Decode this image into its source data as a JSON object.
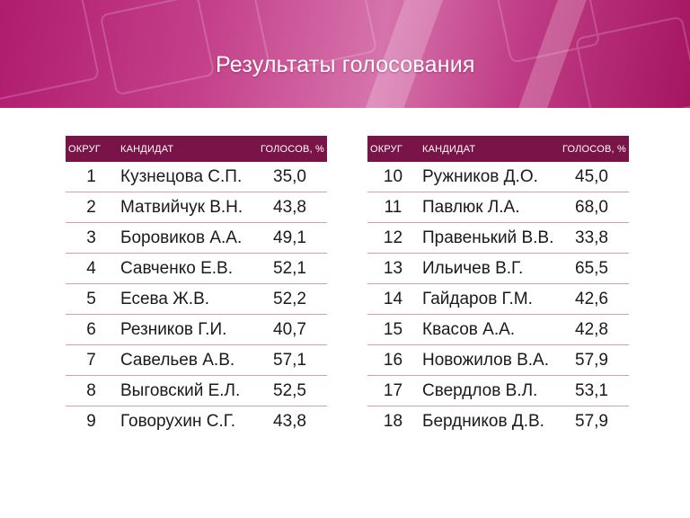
{
  "title": "Результаты голосования",
  "colors": {
    "banner": "#b01c6e",
    "header_row": "#7a1448",
    "row_divider": "#d49bbb"
  },
  "headers": {
    "district": "ОКРУГ",
    "candidate": "КАНДИДАТ",
    "votes": "ГОЛОСОВ, %"
  },
  "left_table": [
    {
      "district": "1",
      "candidate": "Кузнецова С.П.",
      "votes": "35,0"
    },
    {
      "district": "2",
      "candidate": "Матвийчук В.Н.",
      "votes": "43,8"
    },
    {
      "district": "3",
      "candidate": "Боровиков А.А.",
      "votes": "49,1"
    },
    {
      "district": "4",
      "candidate": "Савченко Е.В.",
      "votes": "52,1"
    },
    {
      "district": "5",
      "candidate": "Есева Ж.В.",
      "votes": "52,2"
    },
    {
      "district": "6",
      "candidate": "Резников Г.И.",
      "votes": "40,7"
    },
    {
      "district": "7",
      "candidate": "Савельев А.В.",
      "votes": "57,1"
    },
    {
      "district": "8",
      "candidate": "Выговский Е.Л.",
      "votes": "52,5"
    },
    {
      "district": "9",
      "candidate": "Говорухин С.Г.",
      "votes": "43,8"
    }
  ],
  "right_table": [
    {
      "district": "10",
      "candidate": "Ружников Д.О.",
      "votes": "45,0"
    },
    {
      "district": "11",
      "candidate": "Павлюк Л.А.",
      "votes": "68,0"
    },
    {
      "district": "12",
      "candidate": "Правенький В.В.",
      "votes": "33,8"
    },
    {
      "district": "13",
      "candidate": "Ильичев В.Г.",
      "votes": "65,5"
    },
    {
      "district": "14",
      "candidate": "Гайдаров Г.М.",
      "votes": "42,6"
    },
    {
      "district": "15",
      "candidate": "Квасов А.А.",
      "votes": "42,8"
    },
    {
      "district": "16",
      "candidate": "Новожилов В.А.",
      "votes": "57,9"
    },
    {
      "district": "17",
      "candidate": "Свердлов В.Л.",
      "votes": "53,1"
    },
    {
      "district": "18",
      "candidate": "Бердников Д.В.",
      "votes": "57,9"
    }
  ]
}
